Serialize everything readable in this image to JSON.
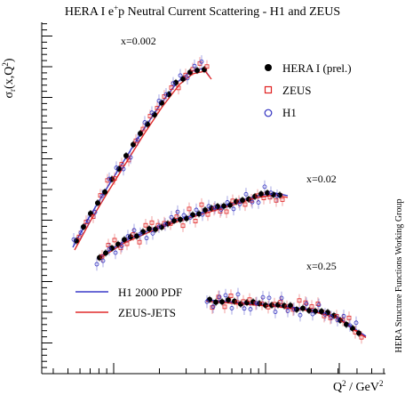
{
  "chart_data": {
    "type": "scatter",
    "title": "HERA I e+p Neutral Current Scattering - H1 and ZEUS",
    "title_parts": {
      "a": "HERA I e",
      "sup": "+",
      "b": "p Neutral Current Scattering - H1 and ZEUS"
    },
    "ylabel": {
      "main": "σ",
      "sub": "r",
      "rest": "(x,Q",
      "sup": "2",
      "close": ")"
    },
    "xlabel": {
      "main": "Q",
      "sup": "2",
      "rest": " / GeV",
      "sup2": "2"
    },
    "x_scale": "log",
    "y_scale": "linear",
    "grid": false,
    "watermark": "HERA Structure Functions Working Group",
    "legend_top": {
      "placement": "top-right",
      "entries": [
        {
          "label": "HERA I (prel.)",
          "marker": "filled-circle",
          "color": "#000000"
        },
        {
          "label": "ZEUS",
          "marker": "open-square",
          "color": "#e02020"
        },
        {
          "label": "H1",
          "marker": "open-circle",
          "color": "#3030c0"
        }
      ]
    },
    "legend_bottom": {
      "placement": "bottom-left",
      "entries": [
        {
          "label": "H1 2000 PDF",
          "color": "#3a3ac8"
        },
        {
          "label": "ZEUS-JETS",
          "color": "#e02a2a"
        }
      ]
    },
    "bin_labels": [
      {
        "label": "x=0.002"
      },
      {
        "label": "x=0.02"
      },
      {
        "label": "x=0.25"
      }
    ],
    "colors": {
      "hera": "#000000",
      "zeus": "#e02020",
      "h1": "#3030c0",
      "fit_h1": "#3a3ac8",
      "fit_zeus": "#e02a2a",
      "axis": "#000000"
    }
  }
}
